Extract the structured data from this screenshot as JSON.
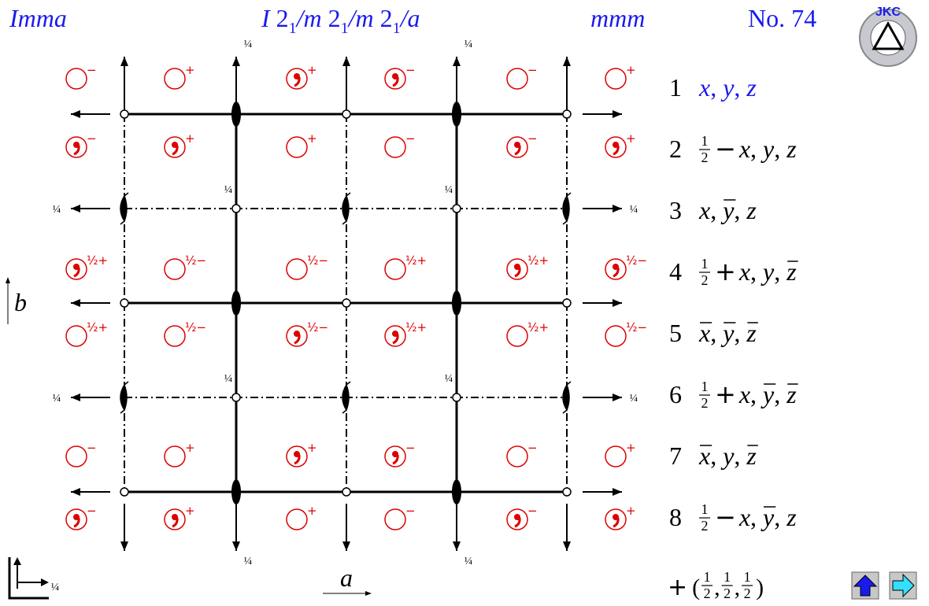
{
  "header": {
    "symbol": "Imma",
    "full_symbol": {
      "lattice": "I",
      "separator": "/",
      "operators": [
        {
          "axis": "2",
          "subscript": "1",
          "plane": "m"
        },
        {
          "axis": "2",
          "subscript": "1",
          "plane": "m"
        },
        {
          "axis": "2",
          "subscript": "1",
          "plane": "a"
        }
      ]
    },
    "point_group": "mmm",
    "number": "No. 74"
  },
  "logo": "JKC",
  "diagram": {
    "axis_a": "a",
    "axis_b": "b",
    "quarter_labels": [
      "¼",
      "¼",
      "¼",
      "¼",
      "¼",
      "¼",
      "¼",
      "¼",
      "¼",
      "¼",
      "¼",
      "¼",
      "¼"
    ],
    "rows": [
      [
        {
          "comma": false,
          "label": "−"
        },
        {
          "comma": false,
          "label": "+"
        },
        {
          "comma": true,
          "label": "+"
        },
        {
          "comma": true,
          "label": "−"
        },
        {
          "comma": false,
          "label": "−"
        },
        {
          "comma": false,
          "label": "+"
        }
      ],
      [
        {
          "comma": true,
          "label": "−"
        },
        {
          "comma": true,
          "label": "+"
        },
        {
          "comma": false,
          "label": "+"
        },
        {
          "comma": false,
          "label": "−"
        },
        {
          "comma": true,
          "label": "−"
        },
        {
          "comma": true,
          "label": "+"
        }
      ],
      [
        {
          "comma": true,
          "label": "½+"
        },
        {
          "comma": false,
          "label": "½−"
        },
        {
          "comma": false,
          "label": "½−"
        },
        {
          "comma": false,
          "label": "½+"
        },
        {
          "comma": true,
          "label": "½+"
        },
        {
          "comma": true,
          "label": "½−"
        }
      ],
      [
        {
          "comma": false,
          "label": "½+"
        },
        {
          "comma": false,
          "label": "½−"
        },
        {
          "comma": true,
          "label": "½−"
        },
        {
          "comma": true,
          "label": "½+"
        },
        {
          "comma": false,
          "label": "½+"
        },
        {
          "comma": false,
          "label": "½−"
        }
      ],
      [
        {
          "comma": false,
          "label": "−"
        },
        {
          "comma": false,
          "label": "+"
        },
        {
          "comma": true,
          "label": "+"
        },
        {
          "comma": true,
          "label": "−"
        },
        {
          "comma": false,
          "label": "−"
        },
        {
          "comma": false,
          "label": "+"
        }
      ],
      [
        {
          "comma": true,
          "label": "−"
        },
        {
          "comma": true,
          "label": "+"
        },
        {
          "comma": false,
          "label": "+"
        },
        {
          "comma": false,
          "label": "−"
        },
        {
          "comma": true,
          "label": "−"
        },
        {
          "comma": true,
          "label": "+"
        }
      ]
    ]
  },
  "positions": {
    "separator": ",",
    "list": [
      {
        "number": "1",
        "color": "#1a1aee",
        "coords": [
          {
            "symbol": "x",
            "bar": false
          },
          {
            "symbol": "y",
            "bar": false
          },
          {
            "symbol": "z",
            "bar": false
          }
        ]
      },
      {
        "number": "2",
        "shift": {
          "numerator": "1",
          "denominator": "2",
          "sign": "−"
        },
        "coords": [
          {
            "symbol": "x",
            "bar": false
          },
          {
            "symbol": "y",
            "bar": false
          },
          {
            "symbol": "z",
            "bar": false
          }
        ]
      },
      {
        "number": "3",
        "coords": [
          {
            "symbol": "x",
            "bar": false
          },
          {
            "symbol": "y",
            "bar": true
          },
          {
            "symbol": "z",
            "bar": false
          }
        ]
      },
      {
        "number": "4",
        "shift": {
          "numerator": "1",
          "denominator": "2",
          "sign": "+"
        },
        "coords": [
          {
            "symbol": "x",
            "bar": false
          },
          {
            "symbol": "y",
            "bar": false
          },
          {
            "symbol": "z",
            "bar": true
          }
        ]
      },
      {
        "number": "5",
        "coords": [
          {
            "symbol": "x",
            "bar": true
          },
          {
            "symbol": "y",
            "bar": true
          },
          {
            "symbol": "z",
            "bar": true
          }
        ]
      },
      {
        "number": "6",
        "shift": {
          "numerator": "1",
          "denominator": "2",
          "sign": "+"
        },
        "coords": [
          {
            "symbol": "x",
            "bar": false
          },
          {
            "symbol": "y",
            "bar": true
          },
          {
            "symbol": "z",
            "bar": true
          }
        ]
      },
      {
        "number": "7",
        "coords": [
          {
            "symbol": "x",
            "bar": true
          },
          {
            "symbol": "y",
            "bar": false
          },
          {
            "symbol": "z",
            "bar": true
          }
        ]
      },
      {
        "number": "8",
        "shift": {
          "numerator": "1",
          "denominator": "2",
          "sign": "−"
        },
        "coords": [
          {
            "symbol": "x",
            "bar": false
          },
          {
            "symbol": "y",
            "bar": true
          },
          {
            "symbol": "z",
            "bar": false
          }
        ]
      }
    ]
  },
  "centering": {
    "sign": "+",
    "open": "(",
    "close": ")",
    "separator": ",",
    "vector": [
      {
        "numerator": "1",
        "denominator": "2"
      },
      {
        "numerator": "1",
        "denominator": "2"
      },
      {
        "numerator": "1",
        "denominator": "2"
      }
    ]
  }
}
